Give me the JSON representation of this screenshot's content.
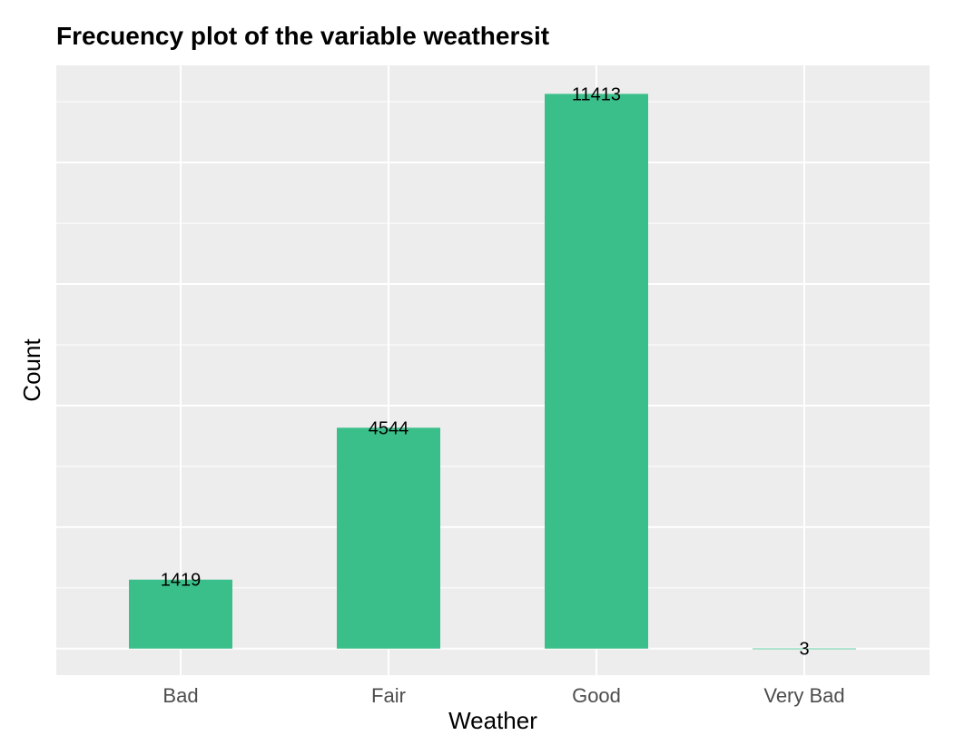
{
  "chart_data": {
    "type": "bar",
    "title": "Frecuency plot of the variable weathersit",
    "xlabel": "Weather",
    "ylabel": "Count",
    "categories": [
      "Bad",
      "Fair",
      "Good",
      "Very Bad"
    ],
    "values": [
      1419,
      4544,
      11413,
      3
    ],
    "data_labels": [
      "1419",
      "4544",
      "11413",
      "3"
    ],
    "ylim": [
      -546,
      12000
    ],
    "y_ticks_labeled": false,
    "grid": true,
    "bar_color": "#3BBF8A",
    "panel_color": "#EDEDED",
    "grid_color": "#FFFFFF",
    "axis_text_color": "#4D4D4D"
  }
}
